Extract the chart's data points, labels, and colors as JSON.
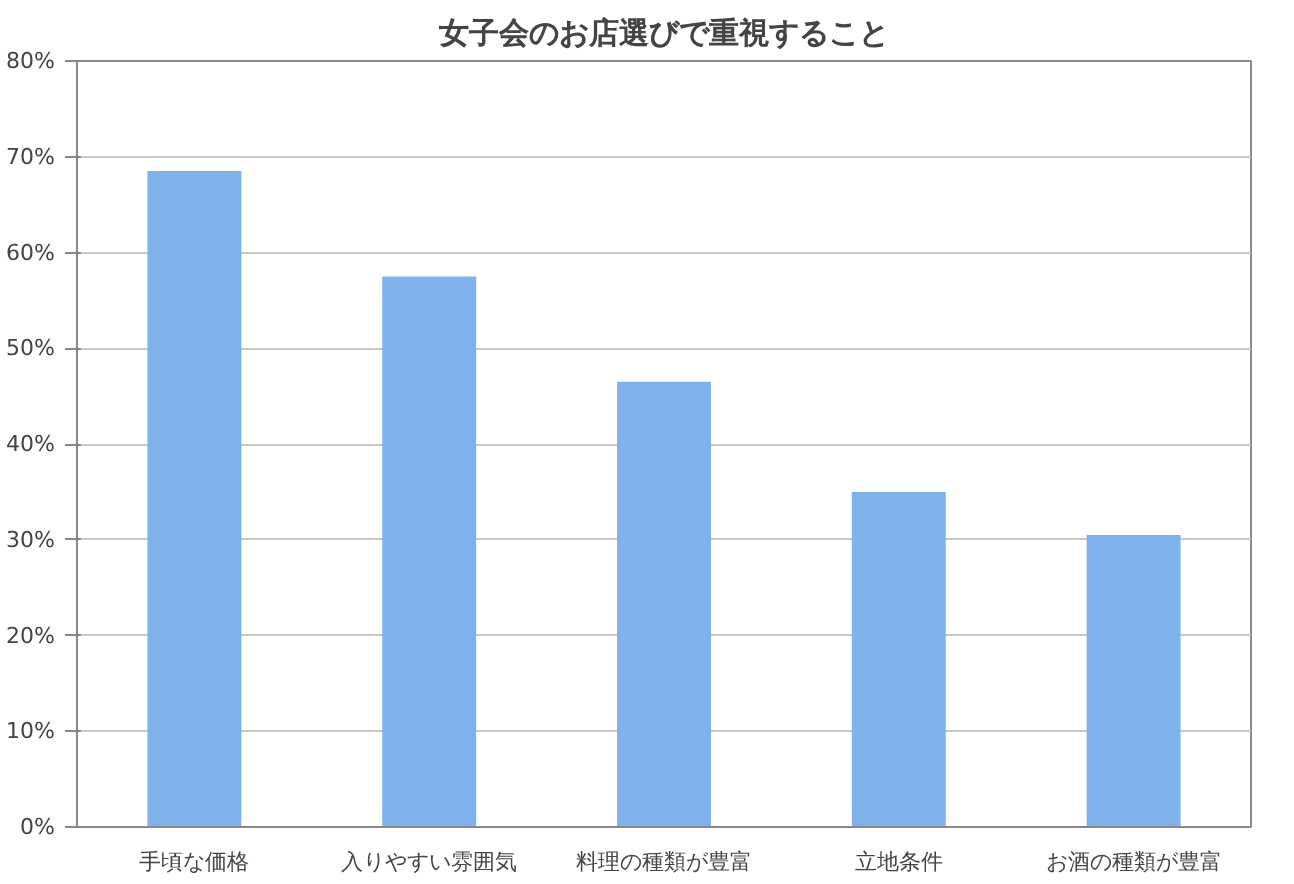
{
  "chart_data": {
    "type": "bar",
    "title": "女子会のお店選びで重視すること",
    "categories": [
      "手頃な価格",
      "入りやすい雰囲気",
      "料理の種類が豊富",
      "立地条件",
      "お酒の種類が豊富"
    ],
    "values": [
      68.5,
      57.5,
      46.5,
      35,
      30.5
    ],
    "color": "#7fb2ec",
    "ylim": [
      0,
      80
    ],
    "yticks": [
      {
        "value": 0,
        "label": "0%"
      },
      {
        "value": 10,
        "label": "10%"
      },
      {
        "value": 20,
        "label": "20%"
      },
      {
        "value": 30,
        "label": "30%"
      },
      {
        "value": 40,
        "label": "40%"
      },
      {
        "value": 50,
        "label": "50%"
      },
      {
        "value": 60,
        "label": "60%"
      },
      {
        "value": 70,
        "label": "70%"
      },
      {
        "value": 80,
        "label": "80%"
      }
    ],
    "grid": "y"
  }
}
